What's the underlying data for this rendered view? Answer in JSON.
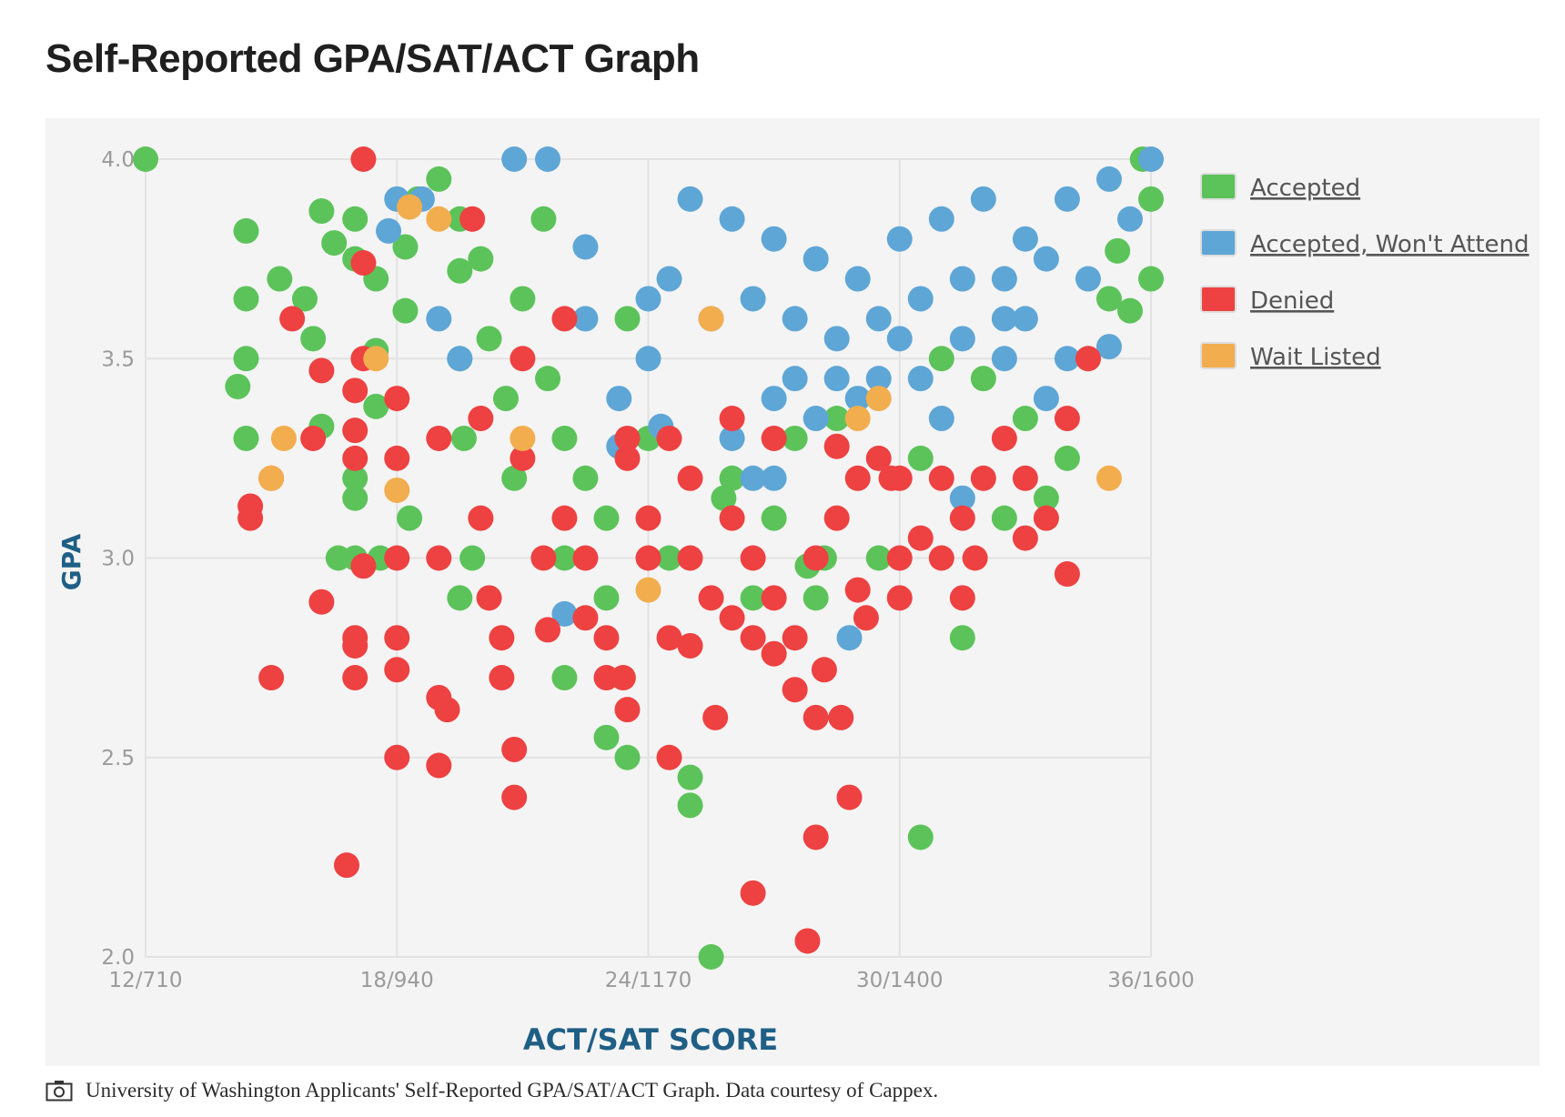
{
  "page": {
    "title": "Self-Reported GPA/SAT/ACT Graph",
    "caption": "University of Washington Applicants' Self-Reported GPA/SAT/ACT Graph. Data courtesy of Cappex.",
    "caption_icon": "camera-icon"
  },
  "colors": {
    "accepted": "#5cc35a",
    "accepted_wont_attend": "#5ea6d6",
    "denied": "#ee4141",
    "wait_listed": "#f2ad4e",
    "axis_title": "#1f5f86",
    "plot_background": "#f4f4f4"
  },
  "chart_data": {
    "type": "scatter",
    "title": "",
    "xlabel": "ACT/SAT SCORE",
    "ylabel": "GPA",
    "xlim": [
      12,
      36
    ],
    "ylim": [
      2.0,
      4.0
    ],
    "x_ticks": [
      {
        "value": 12,
        "label": "12/710"
      },
      {
        "value": 18,
        "label": "18/940"
      },
      {
        "value": 24,
        "label": "24/1170"
      },
      {
        "value": 30,
        "label": "30/1400"
      },
      {
        "value": 36,
        "label": "36/1600"
      }
    ],
    "y_ticks": [
      {
        "value": 2.0,
        "label": "2.0"
      },
      {
        "value": 2.5,
        "label": "2.5"
      },
      {
        "value": 3.0,
        "label": "3.0"
      },
      {
        "value": 3.5,
        "label": "3.5"
      },
      {
        "value": 4.0,
        "label": "4.0"
      }
    ],
    "grid": true,
    "legend_position": "right",
    "series": [
      {
        "name": "Accepted",
        "color": "#5cc35a",
        "points": [
          [
            12,
            4.0
          ],
          [
            14.4,
            3.82
          ],
          [
            14.4,
            3.65
          ],
          [
            14.4,
            3.5
          ],
          [
            14.2,
            3.43
          ],
          [
            14.4,
            3.3
          ],
          [
            15.2,
            3.7
          ],
          [
            16.2,
            3.87
          ],
          [
            15.8,
            3.65
          ],
          [
            16.0,
            3.55
          ],
          [
            16.2,
            3.33
          ],
          [
            16.5,
            3.79
          ],
          [
            17.0,
            3.75
          ],
          [
            17.0,
            3.85
          ],
          [
            17.0,
            3.0
          ],
          [
            16.6,
            3.0
          ],
          [
            17.6,
            3.0
          ],
          [
            17.0,
            3.15
          ],
          [
            17.0,
            3.2
          ],
          [
            17.5,
            3.38
          ],
          [
            17.5,
            3.52
          ],
          [
            17.5,
            3.7
          ],
          [
            18.2,
            3.78
          ],
          [
            18.2,
            3.62
          ],
          [
            18.5,
            3.9
          ],
          [
            18.3,
            3.1
          ],
          [
            19.0,
            3.95
          ],
          [
            19.5,
            3.85
          ],
          [
            19.5,
            3.72
          ],
          [
            19.5,
            3.5
          ],
          [
            19.6,
            3.3
          ],
          [
            19.8,
            3.0
          ],
          [
            19.5,
            2.9
          ],
          [
            20.0,
            3.75
          ],
          [
            20.2,
            3.55
          ],
          [
            20.6,
            3.4
          ],
          [
            20.8,
            3.2
          ],
          [
            21.0,
            3.65
          ],
          [
            21.5,
            3.85
          ],
          [
            21.6,
            3.45
          ],
          [
            22.0,
            3.3
          ],
          [
            22.0,
            3.0
          ],
          [
            22.0,
            2.7
          ],
          [
            22.5,
            3.2
          ],
          [
            23.0,
            3.1
          ],
          [
            23.0,
            2.9
          ],
          [
            23.0,
            2.55
          ],
          [
            23.5,
            2.5
          ],
          [
            23.5,
            3.6
          ],
          [
            24.0,
            3.3
          ],
          [
            24.5,
            3.0
          ],
          [
            25.0,
            2.45
          ],
          [
            25.0,
            2.38
          ],
          [
            25.5,
            2.0
          ],
          [
            25.8,
            3.15
          ],
          [
            26.0,
            3.2
          ],
          [
            26.5,
            2.9
          ],
          [
            27.0,
            3.1
          ],
          [
            27.5,
            3.3
          ],
          [
            28.0,
            2.9
          ],
          [
            27.8,
            2.98
          ],
          [
            28.2,
            3.0
          ],
          [
            28.5,
            3.35
          ],
          [
            29.5,
            3.0
          ],
          [
            30.5,
            2.3
          ],
          [
            30.5,
            3.25
          ],
          [
            31.0,
            3.5
          ],
          [
            31.5,
            2.8
          ],
          [
            32.0,
            3.45
          ],
          [
            32.5,
            3.1
          ],
          [
            33.0,
            3.35
          ],
          [
            33.5,
            3.15
          ],
          [
            34.0,
            3.25
          ],
          [
            34.5,
            3.5
          ],
          [
            35.0,
            3.65
          ],
          [
            35.5,
            3.62
          ],
          [
            36.0,
            3.7
          ],
          [
            36.0,
            3.9
          ],
          [
            35.8,
            4.0
          ],
          [
            35.2,
            3.77
          ]
        ]
      },
      {
        "name": "Accepted, Won't Attend",
        "color": "#5ea6d6",
        "points": [
          [
            18.0,
            3.9
          ],
          [
            17.8,
            3.82
          ],
          [
            18.6,
            3.9
          ],
          [
            19.0,
            3.6
          ],
          [
            19.5,
            3.5
          ],
          [
            20.8,
            4.0
          ],
          [
            21.6,
            4.0
          ],
          [
            22.5,
            3.78
          ],
          [
            22.5,
            3.6
          ],
          [
            23.3,
            3.4
          ],
          [
            23.3,
            3.28
          ],
          [
            24.0,
            3.5
          ],
          [
            24.3,
            3.33
          ],
          [
            24.5,
            3.7
          ],
          [
            22.0,
            2.86
          ],
          [
            26.0,
            3.3
          ],
          [
            26.5,
            3.2
          ],
          [
            27.0,
            3.4
          ],
          [
            27.0,
            3.2
          ],
          [
            28.0,
            3.35
          ],
          [
            28.8,
            2.8
          ],
          [
            29.0,
            3.4
          ],
          [
            30.0,
            3.55
          ],
          [
            31.0,
            3.35
          ],
          [
            31.5,
            3.15
          ],
          [
            32.5,
            3.5
          ],
          [
            33.0,
            3.6
          ],
          [
            33.5,
            3.4
          ],
          [
            34.0,
            3.5
          ],
          [
            34.5,
            3.7
          ],
          [
            35.0,
            3.53
          ],
          [
            35.5,
            3.85
          ],
          [
            36.0,
            4.0
          ],
          [
            25.0,
            3.9
          ],
          [
            26.0,
            3.85
          ],
          [
            27.0,
            3.8
          ],
          [
            28.0,
            3.75
          ],
          [
            29.0,
            3.7
          ],
          [
            30.0,
            3.8
          ],
          [
            31.0,
            3.85
          ],
          [
            32.0,
            3.9
          ],
          [
            33.0,
            3.8
          ],
          [
            34.0,
            3.9
          ],
          [
            35.0,
            3.95
          ],
          [
            24.0,
            3.65
          ],
          [
            25.5,
            3.6
          ],
          [
            26.5,
            3.65
          ],
          [
            27.5,
            3.6
          ],
          [
            28.5,
            3.55
          ],
          [
            29.5,
            3.6
          ],
          [
            30.5,
            3.65
          ],
          [
            31.5,
            3.7
          ],
          [
            32.5,
            3.7
          ],
          [
            33.5,
            3.75
          ],
          [
            27.5,
            3.45
          ],
          [
            28.5,
            3.45
          ],
          [
            29.5,
            3.45
          ],
          [
            30.5,
            3.45
          ],
          [
            31.5,
            3.55
          ],
          [
            32.5,
            3.6
          ]
        ]
      },
      {
        "name": "Denied",
        "color": "#ee4141",
        "points": [
          [
            17.2,
            4.0
          ],
          [
            15.5,
            3.6
          ],
          [
            15.0,
            3.2
          ],
          [
            14.5,
            3.1
          ],
          [
            14.5,
            3.13
          ],
          [
            15.0,
            2.7
          ],
          [
            16.2,
            3.47
          ],
          [
            16.0,
            3.3
          ],
          [
            17.2,
            3.74
          ],
          [
            17.0,
            3.42
          ],
          [
            17.0,
            3.32
          ],
          [
            17.0,
            3.25
          ],
          [
            17.2,
            2.98
          ],
          [
            17.0,
            2.8
          ],
          [
            17.0,
            2.78
          ],
          [
            17.0,
            2.7
          ],
          [
            16.2,
            2.89
          ],
          [
            16.8,
            2.23
          ],
          [
            17.2,
            3.5
          ],
          [
            18.0,
            3.4
          ],
          [
            18.0,
            3.25
          ],
          [
            18.0,
            3.0
          ],
          [
            18.0,
            2.8
          ],
          [
            18.0,
            2.72
          ],
          [
            18.0,
            2.5
          ],
          [
            19.0,
            3.3
          ],
          [
            19.0,
            3.0
          ],
          [
            19.0,
            2.65
          ],
          [
            19.0,
            2.48
          ],
          [
            19.2,
            2.62
          ],
          [
            19.8,
            3.85
          ],
          [
            20.0,
            3.35
          ],
          [
            20.0,
            3.1
          ],
          [
            20.2,
            2.9
          ],
          [
            20.5,
            2.7
          ],
          [
            20.5,
            2.8
          ],
          [
            20.8,
            2.52
          ],
          [
            20.8,
            2.4
          ],
          [
            21.0,
            3.5
          ],
          [
            21.0,
            3.25
          ],
          [
            21.5,
            3.0
          ],
          [
            21.6,
            2.82
          ],
          [
            22.0,
            3.6
          ],
          [
            22.0,
            3.1
          ],
          [
            22.5,
            3.0
          ],
          [
            22.5,
            2.85
          ],
          [
            23.0,
            2.8
          ],
          [
            23.0,
            2.7
          ],
          [
            23.4,
            2.7
          ],
          [
            23.5,
            2.62
          ],
          [
            23.5,
            3.3
          ],
          [
            24.0,
            3.1
          ],
          [
            24.0,
            3.0
          ],
          [
            24.5,
            2.8
          ],
          [
            24.5,
            2.5
          ],
          [
            25.0,
            3.2
          ],
          [
            25.0,
            3.0
          ],
          [
            25.0,
            2.78
          ],
          [
            25.5,
            2.9
          ],
          [
            25.6,
            2.6
          ],
          [
            26.0,
            3.1
          ],
          [
            26.0,
            2.85
          ],
          [
            26.5,
            3.0
          ],
          [
            26.5,
            2.8
          ],
          [
            26.5,
            2.16
          ],
          [
            27.0,
            2.9
          ],
          [
            27.0,
            2.76
          ],
          [
            27.5,
            2.8
          ],
          [
            27.5,
            2.67
          ],
          [
            27.8,
            2.04
          ],
          [
            28.0,
            3.0
          ],
          [
            28.0,
            2.6
          ],
          [
            28.0,
            2.3
          ],
          [
            28.2,
            2.72
          ],
          [
            28.5,
            3.1
          ],
          [
            28.6,
            2.6
          ],
          [
            28.8,
            2.4
          ],
          [
            29.0,
            3.2
          ],
          [
            29.0,
            2.92
          ],
          [
            29.2,
            2.85
          ],
          [
            29.5,
            3.25
          ],
          [
            30.0,
            3.2
          ],
          [
            30.0,
            2.9
          ],
          [
            30.0,
            3.0
          ],
          [
            30.5,
            3.05
          ],
          [
            31.0,
            3.2
          ],
          [
            31.0,
            3.0
          ],
          [
            31.5,
            2.9
          ],
          [
            31.5,
            3.1
          ],
          [
            31.8,
            3.0
          ],
          [
            32.0,
            3.2
          ],
          [
            32.5,
            3.3
          ],
          [
            33.0,
            3.2
          ],
          [
            33.0,
            3.05
          ],
          [
            33.5,
            3.1
          ],
          [
            34.0,
            2.96
          ],
          [
            34.0,
            3.35
          ],
          [
            34.5,
            3.5
          ],
          [
            23.5,
            3.25
          ],
          [
            24.5,
            3.3
          ],
          [
            26.0,
            3.35
          ],
          [
            27.0,
            3.3
          ],
          [
            28.5,
            3.28
          ],
          [
            29.8,
            3.2
          ]
        ]
      },
      {
        "name": "Wait Listed",
        "color": "#f2ad4e",
        "points": [
          [
            15.3,
            3.3
          ],
          [
            15.0,
            3.2
          ],
          [
            17.5,
            3.5
          ],
          [
            18.3,
            3.88
          ],
          [
            18.0,
            3.17
          ],
          [
            19.0,
            3.85
          ],
          [
            21.0,
            3.3
          ],
          [
            24.0,
            2.92
          ],
          [
            25.5,
            3.6
          ],
          [
            29.0,
            3.35
          ],
          [
            29.5,
            3.4
          ],
          [
            35.0,
            3.2
          ]
        ]
      }
    ]
  }
}
